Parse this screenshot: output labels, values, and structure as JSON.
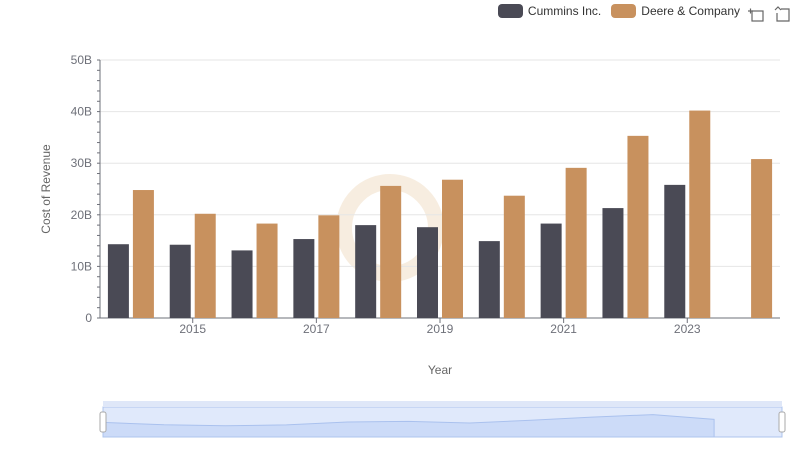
{
  "legend": {
    "items": [
      "Cummins Inc.",
      "Deere & Company"
    ]
  },
  "toolbox": {
    "icons": [
      "zoom-icon",
      "restore-icon"
    ]
  },
  "colors": {
    "cummins": "#4a4a55",
    "deere": "#c8915e",
    "grid": "#e6e6e6",
    "slider_fill": "#d6e2fa",
    "slider_border": "#aec4ee"
  },
  "chart_data": {
    "type": "bar",
    "xlabel": "Year",
    "ylabel": "Cost of Revenue",
    "ylim": [
      0,
      50000000000
    ],
    "y_ticks": [
      "0",
      "10B",
      "20B",
      "30B",
      "40B",
      "50B"
    ],
    "x_tick_labels": [
      "2015",
      "2017",
      "2019",
      "2021",
      "2023"
    ],
    "categories": [
      "2014",
      "2015",
      "2016",
      "2017",
      "2018",
      "2019",
      "2020",
      "2021",
      "2022",
      "2023",
      "2024"
    ],
    "series": [
      {
        "name": "Cummins Inc.",
        "values": [
          14300000000,
          14200000000,
          13100000000,
          15300000000,
          18000000000,
          17600000000,
          14900000000,
          18300000000,
          21300000000,
          25800000000,
          null
        ]
      },
      {
        "name": "Deere & Company",
        "values": [
          24800000000,
          20200000000,
          18300000000,
          19900000000,
          25600000000,
          26800000000,
          23700000000,
          29100000000,
          35300000000,
          40200000000,
          30800000000
        ]
      }
    ],
    "legend_position": "top-right",
    "grid": true,
    "data_zoom_slider": true
  }
}
